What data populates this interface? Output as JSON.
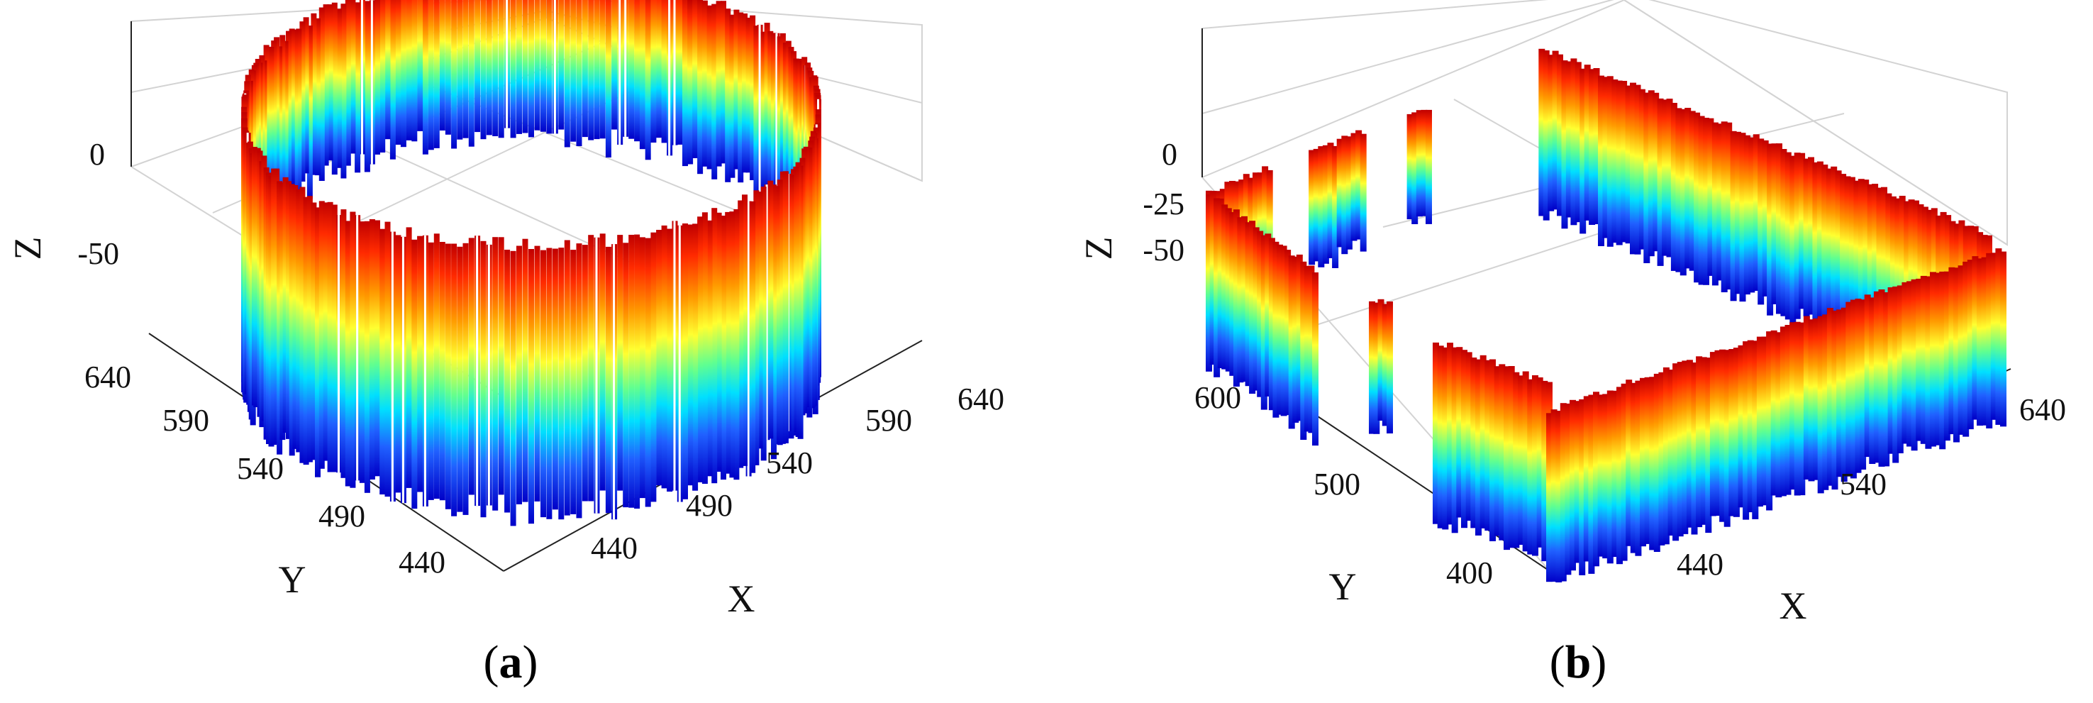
{
  "chart_data": [
    {
      "type": "scatter",
      "panel_label": "(a)",
      "shape": "ring",
      "xlabel": "X",
      "ylabel": "Y",
      "zlabel": "Z",
      "x_ticks": [
        "440",
        "490",
        "540",
        "590",
        "640"
      ],
      "y_ticks": [
        "440",
        "490",
        "540",
        "590",
        "640"
      ],
      "z_ticks": [
        "0",
        "-50"
      ],
      "center": [
        540,
        540
      ],
      "radius": 95,
      "zlim": [
        -80,
        0
      ],
      "colormap": "jet (blue = low Z, red = high Z)"
    },
    {
      "type": "scatter",
      "panel_label": "(b)",
      "shape": "rectangular-walls",
      "xlabel": "X",
      "ylabel": "Y",
      "zlabel": "Z",
      "x_ticks": [
        "440",
        "540",
        "640"
      ],
      "y_ticks": [
        "400",
        "500",
        "600"
      ],
      "z_ticks": [
        "0",
        "-25",
        "-50"
      ],
      "xlim": [
        400,
        640
      ],
      "ylim": [
        400,
        620
      ],
      "zlim": [
        -80,
        0
      ],
      "colormap": "jet (blue = low Z, red = high Z)"
    }
  ],
  "captions": [
    {
      "open": "(",
      "letter": "a",
      "close": ")"
    },
    {
      "open": "(",
      "letter": "b",
      "close": ")"
    }
  ]
}
